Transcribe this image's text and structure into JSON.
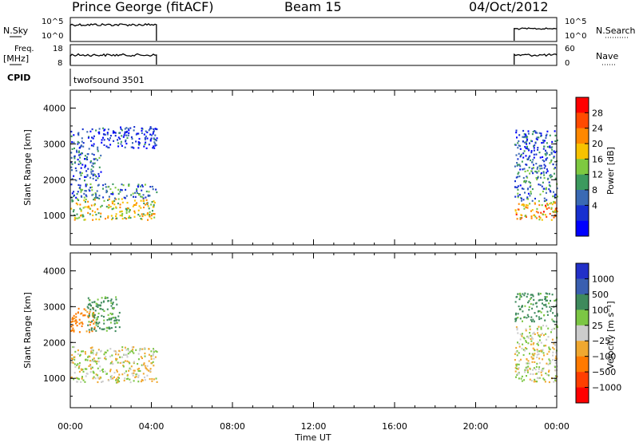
{
  "header": {
    "station": "Prince George (fitACF)",
    "beam": "Beam 15",
    "date": "04/Oct/2012"
  },
  "params": {
    "nsky_label": "N.Sky",
    "nsky_ticks": [
      "10^5",
      "10^0"
    ],
    "nsearch_label": "N.Search",
    "nsearch_ticks": [
      "10^5",
      "10^0"
    ],
    "freq_label": "Freq.",
    "freq_unit": "[MHz]",
    "freq_ticks": [
      "18",
      "8"
    ],
    "nave_label": "Nave",
    "nave_ticks": [
      "60",
      "0"
    ],
    "cpid_label": "CPID",
    "cpid_value": "twofsound 3501"
  },
  "panels": {
    "ylabel": "Slant Range [km]",
    "yticks": [
      "4000",
      "3000",
      "2000",
      "1000"
    ],
    "xticks": [
      "00:00",
      "04:00",
      "08:00",
      "12:00",
      "16:00",
      "20:00",
      "00:00"
    ],
    "xlabel": "Time UT"
  },
  "power_scale": {
    "label": "Power [dB]",
    "ticks": [
      "28",
      "24",
      "20",
      "16",
      "12",
      "8",
      "4"
    ],
    "colors": [
      "#ff0000",
      "#ff4a00",
      "#ff8800",
      "#f7c200",
      "#7ec940",
      "#3c9a5e",
      "#3a6ab4",
      "#1730d0",
      "#0000ff"
    ]
  },
  "velocity_scale": {
    "label": "Velocity [m s⁻¹]",
    "ticks": [
      "1000",
      "500",
      "100",
      "25",
      "−25",
      "−100",
      "−500",
      "−1000"
    ],
    "colors": [
      "#2230c8",
      "#3a5fb0",
      "#3e8a5c",
      "#7cc644",
      "#cccccc",
      "#f0a830",
      "#ff7a00",
      "#ff3e00",
      "#ff0000"
    ]
  },
  "chart_data": [
    {
      "type": "heatmap",
      "title": "Power [dB]",
      "xlabel": "Time UT",
      "ylabel": "Slant Range [km]",
      "xlim": [
        0,
        24
      ],
      "ylim": [
        180,
        4500
      ],
      "xticks": [
        "00:00",
        "04:00",
        "08:00",
        "12:00",
        "16:00",
        "20:00",
        "00:00"
      ],
      "zlim": [
        0,
        32
      ],
      "observation_windows_hours": [
        [
          0.0,
          4.25
        ],
        [
          21.9,
          24.0
        ]
      ],
      "regions": [
        {
          "t": [
            0.0,
            4.25
          ],
          "range_km": [
            900,
            1500
          ],
          "value_db": 18
        },
        {
          "t": [
            0.0,
            4.25
          ],
          "range_km": [
            1500,
            1900
          ],
          "value_db": 10
        },
        {
          "t": [
            0.0,
            1.5
          ],
          "range_km": [
            2000,
            2900
          ],
          "value_db": 8
        },
        {
          "t": [
            0.0,
            4.25
          ],
          "range_km": [
            2900,
            3500
          ],
          "value_db": 5
        },
        {
          "t": [
            21.9,
            24.0
          ],
          "range_km": [
            900,
            1400
          ],
          "value_db": 22
        },
        {
          "t": [
            21.9,
            24.0
          ],
          "range_km": [
            1400,
            2600
          ],
          "value_db": 10
        },
        {
          "t": [
            21.9,
            24.0
          ],
          "range_km": [
            2600,
            3400
          ],
          "value_db": 7
        }
      ]
    },
    {
      "type": "heatmap",
      "title": "Velocity [m s⁻¹]",
      "xlabel": "Time UT",
      "ylabel": "Slant Range [km]",
      "xlim": [
        0,
        24
      ],
      "ylim": [
        180,
        4500
      ],
      "zlim": [
        -1000,
        1000
      ],
      "regions": [
        {
          "t": [
            0.0,
            4.25
          ],
          "range_km": [
            900,
            1900
          ],
          "value_ms": 0
        },
        {
          "t": [
            0.0,
            1.2
          ],
          "range_km": [
            2300,
            3000
          ],
          "value_ms": -150
        },
        {
          "t": [
            0.8,
            2.5
          ],
          "range_km": [
            2300,
            3300
          ],
          "value_ms": 150
        },
        {
          "t": [
            21.9,
            24.0
          ],
          "range_km": [
            900,
            2500
          ],
          "value_ms": 0
        },
        {
          "t": [
            21.9,
            24.0
          ],
          "range_km": [
            2600,
            3400
          ],
          "value_ms": 150
        }
      ]
    }
  ]
}
